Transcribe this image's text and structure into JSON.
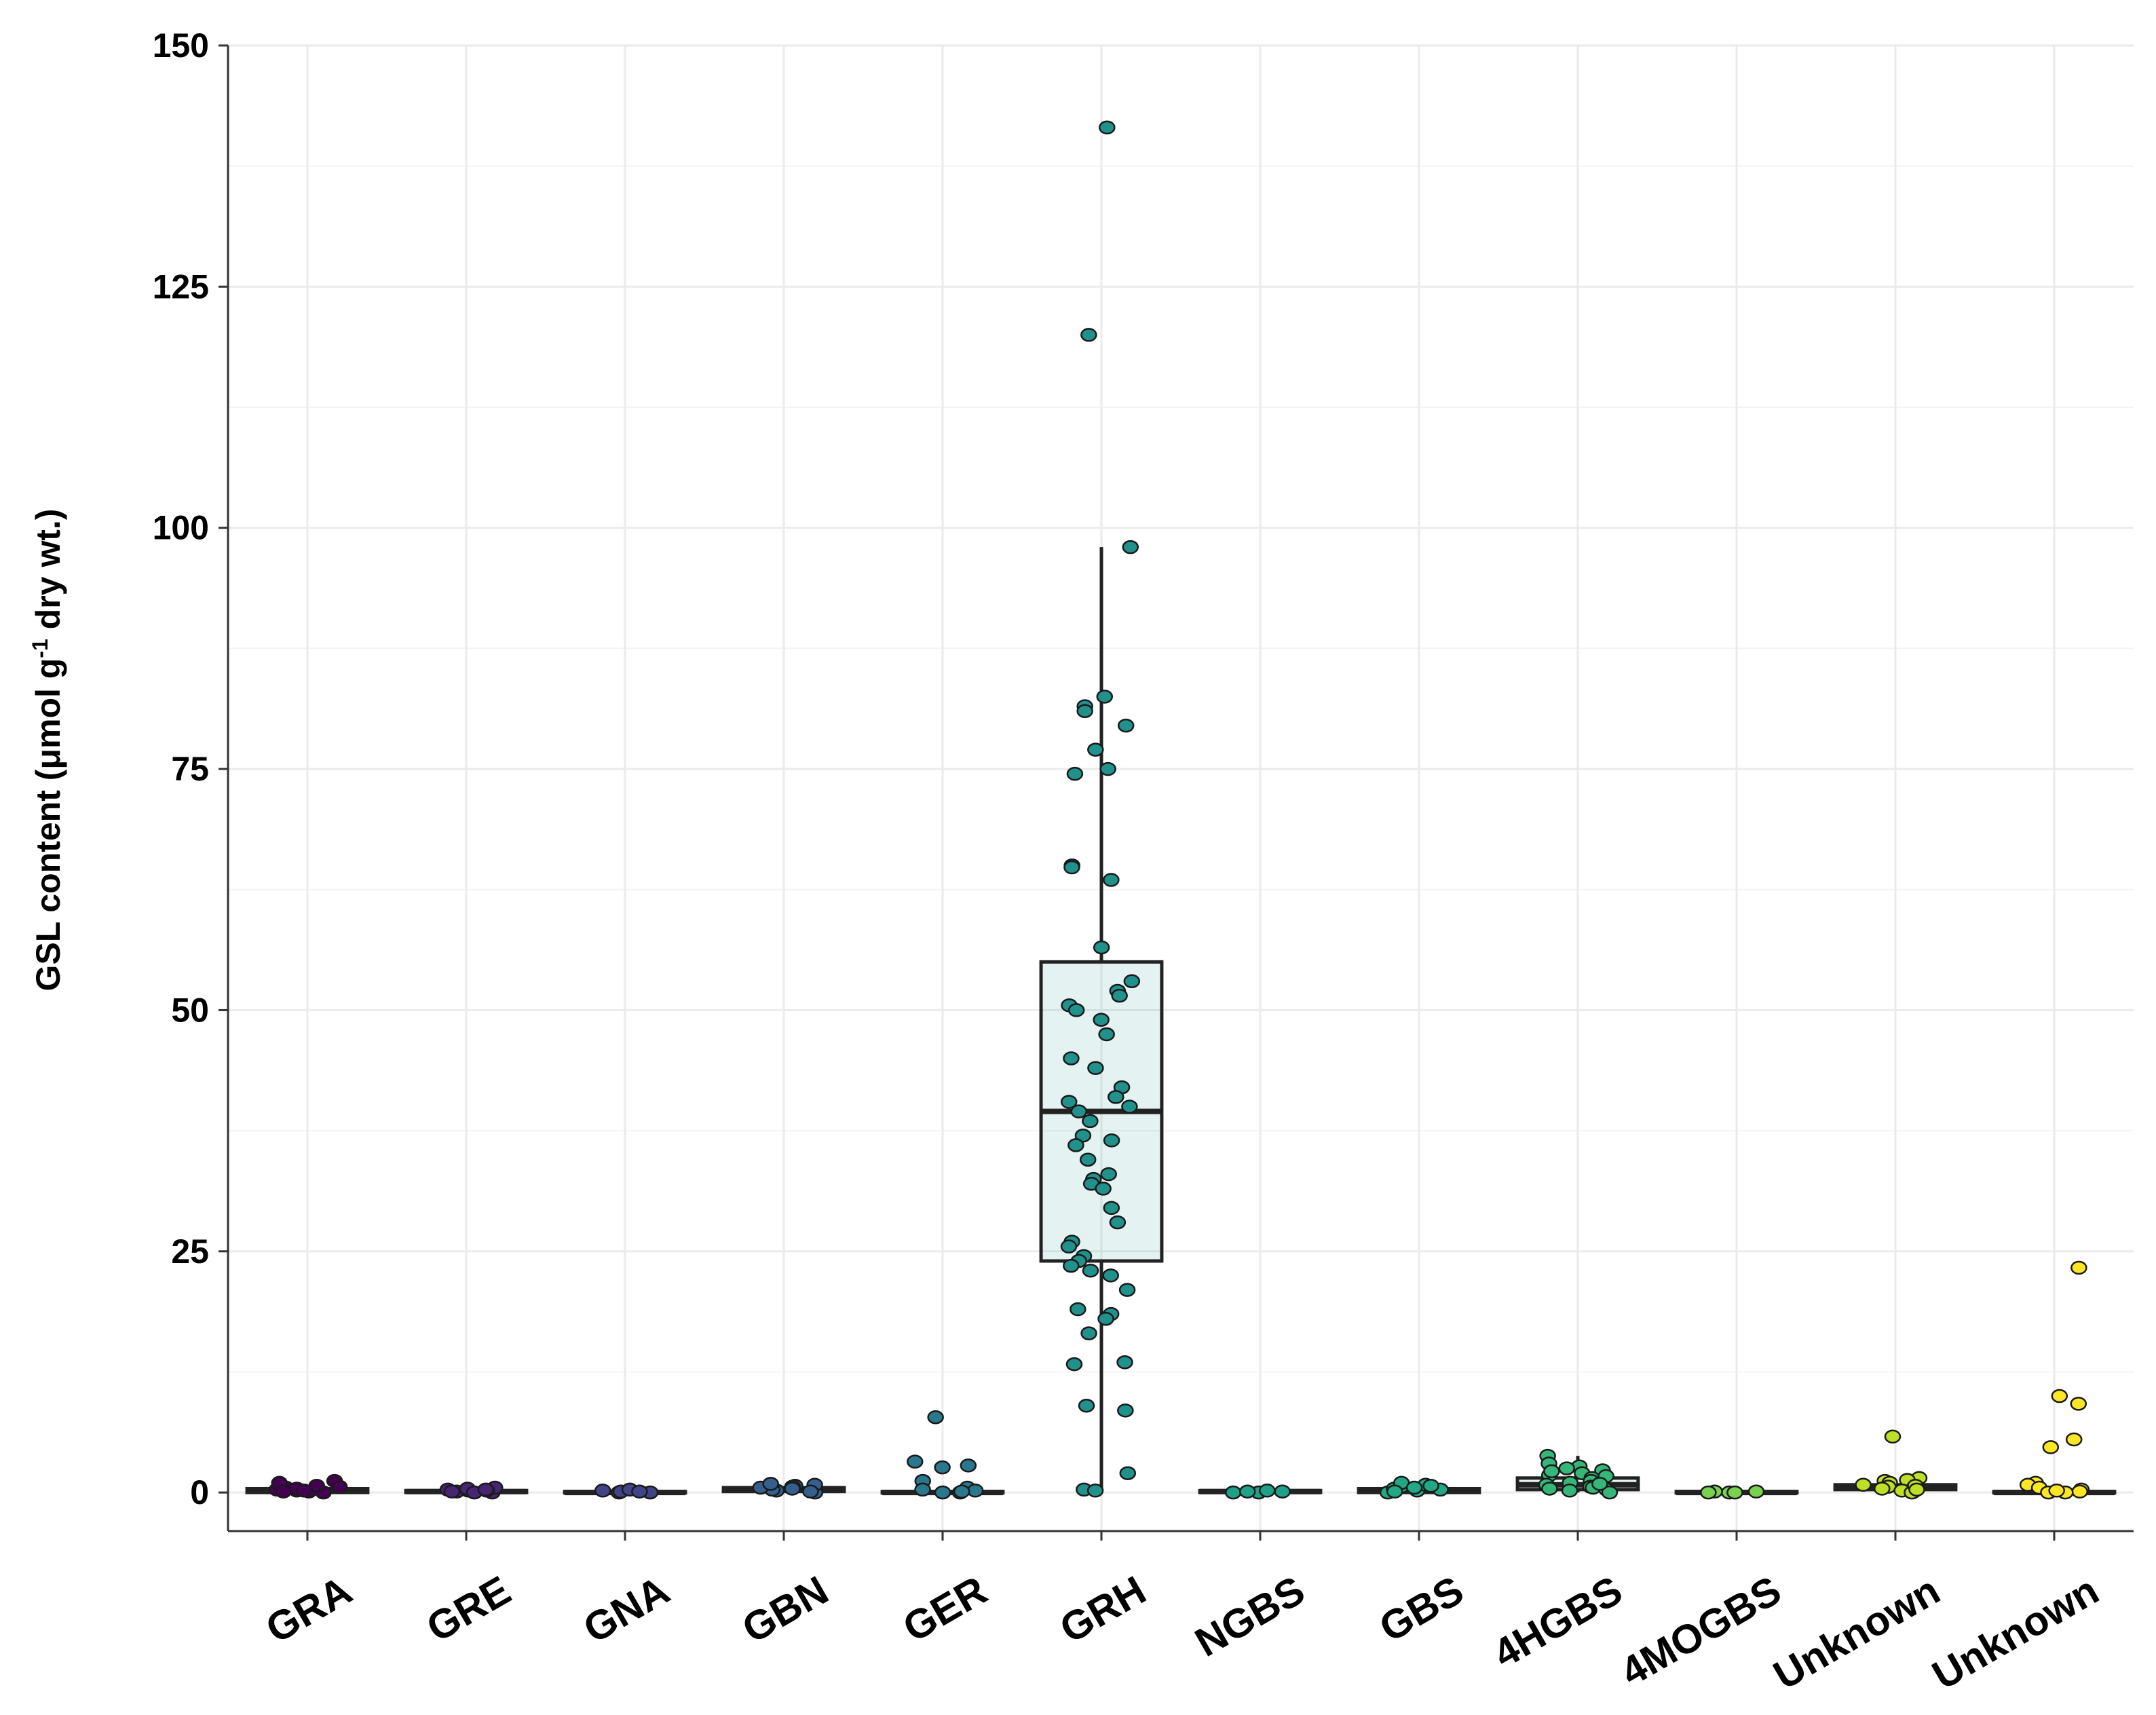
{
  "chart_data": {
    "type": "boxplot",
    "title": "",
    "xlabel": "",
    "ylabel": "GSL content (μmol g",
    "ylabel_sup": "-1",
    "ylabel_tail": " dry wt.)",
    "ylim": [
      -4,
      150
    ],
    "yticks": [
      0,
      25,
      50,
      75,
      100,
      125,
      150
    ],
    "grid": true,
    "legend": "none",
    "categories": [
      "GRA",
      "GRE",
      "GNA",
      "GBN",
      "GER",
      "GRH",
      "NGBS",
      "GBS",
      "4HGBS",
      "4MOGBS",
      "Unknown",
      "Unknown"
    ],
    "series": [
      {
        "category": "GRA",
        "color": "#440154",
        "q1": 0.0,
        "median": 0.2,
        "q3": 0.4,
        "whisker_low": 0.0,
        "whisker_high": 0.5,
        "points": [
          0.0,
          0.1,
          0.2,
          0.3,
          0.5,
          0.7,
          1.0,
          1.2,
          0.4,
          0.1,
          0.2,
          0.6
        ]
      },
      {
        "category": "GRE",
        "color": "#482475",
        "q1": 0.0,
        "median": 0.1,
        "q3": 0.2,
        "whisker_low": 0.0,
        "whisker_high": 0.3,
        "points": [
          0.0,
          0.1,
          0.2,
          0.3,
          0.4,
          0.5,
          0.2,
          0.1,
          0.0,
          0.3
        ]
      },
      {
        "category": "GNA",
        "color": "#414487",
        "q1": 0.0,
        "median": 0.0,
        "q3": 0.1,
        "whisker_low": 0.0,
        "whisker_high": 0.1,
        "points": [
          0.0,
          0.1,
          0.2,
          0.3,
          0.0,
          0.1
        ]
      },
      {
        "category": "GBN",
        "color": "#355f8d",
        "q1": 0.1,
        "median": 0.3,
        "q3": 0.5,
        "whisker_low": 0.0,
        "whisker_high": 0.6,
        "points": [
          0.0,
          0.2,
          0.3,
          0.5,
          0.7,
          0.8,
          0.6,
          0.1,
          0.4,
          0.9
        ]
      },
      {
        "category": "GER",
        "color": "#2a788e",
        "q1": 0.0,
        "median": 0.0,
        "q3": 0.1,
        "whisker_low": 0.0,
        "whisker_high": 0.2,
        "points": [
          7.8,
          3.2,
          2.8,
          2.6,
          1.2,
          0.5,
          0.2,
          0.0,
          0.0,
          0.1,
          0.3
        ]
      },
      {
        "category": "GRH",
        "color": "#21918c",
        "q1": 24.0,
        "median": 39.5,
        "q3": 55.0,
        "whisker_low": 0.0,
        "whisker_high": 98.0,
        "points": [
          141.5,
          120.0,
          98.0,
          82.5,
          81.5,
          81.0,
          79.5,
          77.0,
          75.0,
          74.5,
          65.0,
          64.8,
          63.5,
          56.5,
          53.0,
          52.0,
          51.5,
          50.5,
          50.0,
          49.0,
          47.5,
          45.0,
          44.0,
          42.0,
          41.0,
          40.5,
          40.0,
          39.5,
          38.5,
          37.0,
          36.5,
          36.0,
          34.5,
          33.0,
          32.5,
          32.0,
          31.5,
          29.5,
          28.0,
          26.0,
          25.5,
          24.5,
          24.0,
          23.5,
          23.0,
          22.5,
          21.0,
          19.0,
          18.5,
          18.0,
          16.5,
          13.5,
          13.3,
          9.0,
          8.5,
          2.0,
          0.3,
          0.2
        ]
      },
      {
        "category": "NGBS",
        "color": "#1fa187",
        "q1": 0.0,
        "median": 0.1,
        "q3": 0.2,
        "whisker_low": 0.0,
        "whisker_high": 0.2,
        "points": [
          0.0,
          0.1,
          0.2,
          0.0,
          0.1
        ]
      },
      {
        "category": "GBS",
        "color": "#22a884",
        "q1": 0.0,
        "median": 0.2,
        "q3": 0.4,
        "whisker_low": 0.0,
        "whisker_high": 0.8,
        "points": [
          0.0,
          0.2,
          0.4,
          0.6,
          0.8,
          1.0,
          0.3,
          0.1,
          0.5,
          0.7
        ]
      },
      {
        "category": "4HGBS",
        "color": "#35b779",
        "q1": 0.3,
        "median": 0.8,
        "q3": 1.5,
        "whisker_low": 0.0,
        "whisker_high": 3.8,
        "points": [
          3.8,
          3.0,
          2.7,
          2.5,
          2.3,
          2.0,
          1.8,
          1.5,
          1.2,
          1.0,
          0.8,
          0.6,
          0.5,
          0.3,
          0.2,
          0.0,
          0.4,
          1.7,
          2.2,
          0.9
        ]
      },
      {
        "category": "4MOGBS",
        "color": "#7ad151",
        "q1": 0.0,
        "median": 0.0,
        "q3": 0.1,
        "whisker_low": 0.0,
        "whisker_high": 0.1,
        "points": [
          0.0,
          0.1,
          0.0,
          0.1,
          0.0
        ]
      },
      {
        "category": "Unknown",
        "color": "#bddf26",
        "q1": 0.3,
        "median": 0.6,
        "q3": 0.8,
        "whisker_low": 0.0,
        "whisker_high": 1.3,
        "points": [
          5.8,
          1.5,
          1.3,
          1.2,
          1.0,
          0.8,
          0.6,
          0.5,
          0.4,
          0.2,
          0.1,
          0.0,
          0.7,
          0.3
        ]
      },
      {
        "category": "Unknown",
        "color": "#fde725",
        "q1": 0.0,
        "median": 0.0,
        "q3": 0.1,
        "whisker_low": 0.0,
        "whisker_high": 0.2,
        "points": [
          23.3,
          10.0,
          9.2,
          5.5,
          4.7,
          1.0,
          0.8,
          0.5,
          0.3,
          0.1,
          0.0,
          0.0,
          0.2
        ]
      }
    ]
  }
}
